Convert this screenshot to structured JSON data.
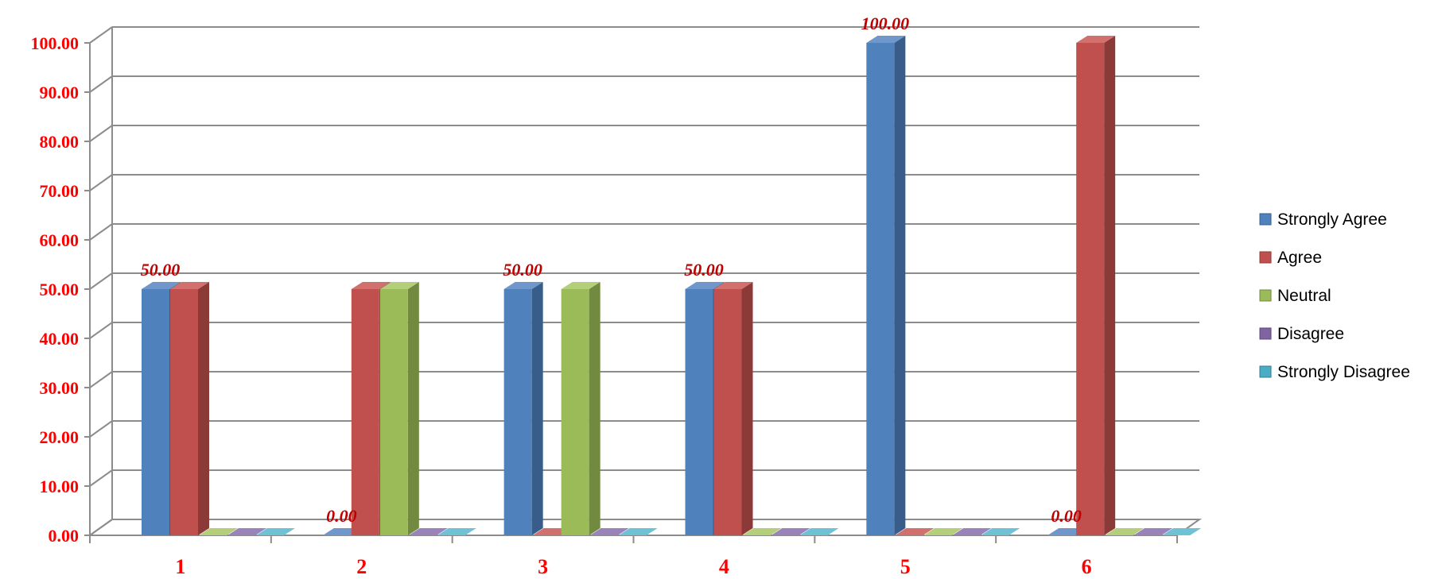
{
  "chart_data": {
    "type": "bar",
    "categories": [
      "1",
      "2",
      "3",
      "4",
      "5",
      "6"
    ],
    "series": [
      {
        "name": "Strongly Agree",
        "values": [
          50,
          0,
          50,
          50,
          100,
          0
        ],
        "color": "#4f81bd",
        "side": "#385d8a",
        "top": "#6f97cc"
      },
      {
        "name": "Agree",
        "values": [
          50,
          50,
          0,
          50,
          0,
          100
        ],
        "color": "#c0504d",
        "side": "#8c3a38",
        "top": "#d2706d"
      },
      {
        "name": "Neutral",
        "values": [
          0,
          50,
          50,
          0,
          0,
          0
        ],
        "color": "#9bbb59",
        "side": "#718a40",
        "top": "#b3cf7a"
      },
      {
        "name": "Disagree",
        "values": [
          0,
          0,
          0,
          0,
          0,
          0
        ],
        "color": "#8064a2",
        "side": "#5c4876",
        "top": "#9a82ba"
      },
      {
        "name": "Strongly Disagree",
        "values": [
          0,
          0,
          0,
          0,
          0,
          0
        ],
        "color": "#4bacc6",
        "side": "#347d91",
        "top": "#6fc1d6"
      }
    ],
    "ylim": [
      0,
      100
    ],
    "yticks": [
      "0.00",
      "10.00",
      "20.00",
      "30.00",
      "40.00",
      "50.00",
      "60.00",
      "70.00",
      "80.00",
      "90.00",
      "100.00"
    ],
    "data_labels": [
      "50.00",
      "0.00",
      "50.00",
      "50.00",
      "100.00",
      "0.00"
    ],
    "grid": true,
    "legend_position": "right",
    "colors": {
      "tick": "#ff0000",
      "data_label": "#c00000",
      "grid": "#8c8c8c"
    }
  }
}
